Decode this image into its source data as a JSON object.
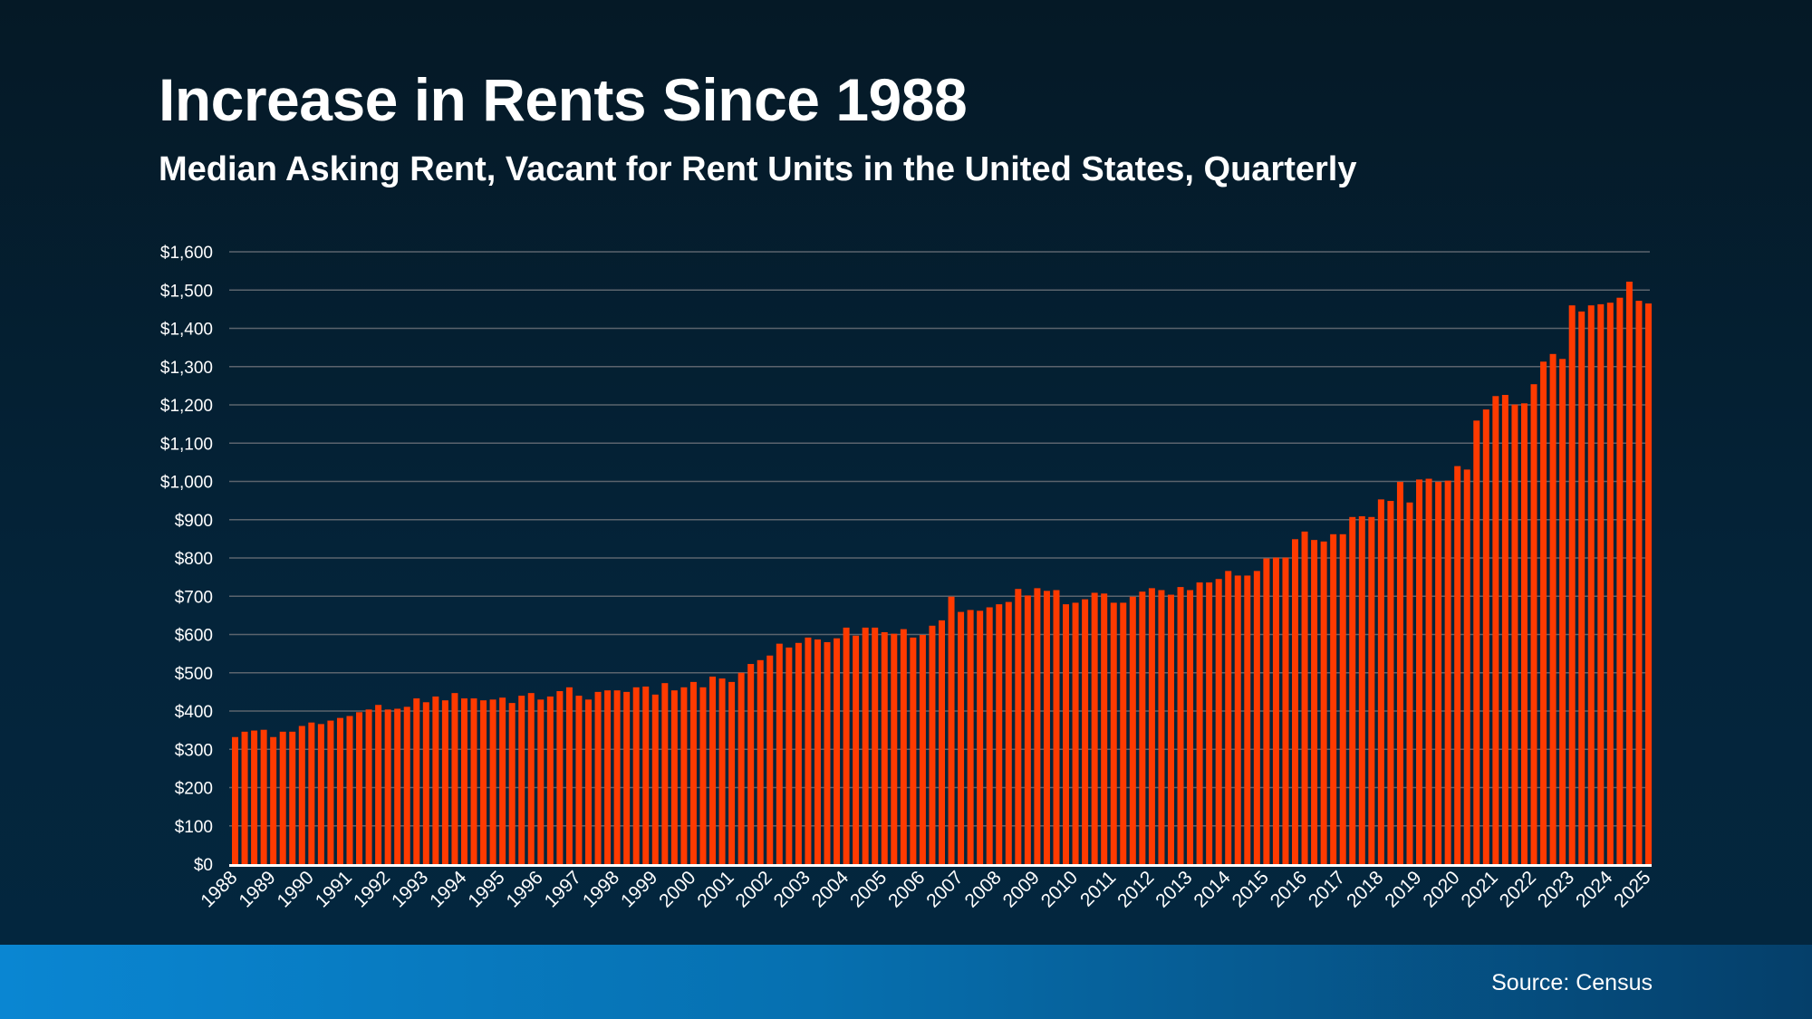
{
  "header": {
    "title": "Increase in Rents Since 1988",
    "subtitle": "Median Asking Rent, Vacant for Rent Units in the United States, Quarterly"
  },
  "footer": {
    "source": "Source: Census"
  },
  "colors": {
    "bar": "#ff3a00",
    "grid": "#5b646d",
    "axis": "#ffffff",
    "footer_left": "#0a86d2",
    "footer_right": "#053f6a"
  },
  "chart_data": {
    "type": "bar",
    "title": "Increase in Rents Since 1988",
    "subtitle": "Median Asking Rent, Vacant for Rent Units in the United States, Quarterly",
    "xlabel": "",
    "ylabel": "",
    "ylim": [
      0,
      1600
    ],
    "grid": true,
    "y_ticks": [
      0,
      100,
      200,
      300,
      400,
      500,
      600,
      700,
      800,
      900,
      1000,
      1100,
      1200,
      1300,
      1400,
      1500,
      1600
    ],
    "y_tick_labels": [
      "$0",
      "$100",
      "$200",
      "$300",
      "$400",
      "$500",
      "$600",
      "$700",
      "$800",
      "$900",
      "$1,000",
      "$1,100",
      "$1,200",
      "$1,300",
      "$1,400",
      "$1,500",
      "$1,600"
    ],
    "x_tick_labels": [
      "1988",
      "1989",
      "1990",
      "1991",
      "1992",
      "1993",
      "1994",
      "1995",
      "1996",
      "1997",
      "1998",
      "1999",
      "2000",
      "2001",
      "2002",
      "2003",
      "2004",
      "2005",
      "2006",
      "2007",
      "2008",
      "2009",
      "2010",
      "2011",
      "2012",
      "2013",
      "2014",
      "2015",
      "2016",
      "2017",
      "2018",
      "2019",
      "2020",
      "2021",
      "2022",
      "2023",
      "2024",
      "2025"
    ],
    "categories": [
      "1988 Q1",
      "1988 Q2",
      "1988 Q3",
      "1988 Q4",
      "1989 Q1",
      "1989 Q2",
      "1989 Q3",
      "1989 Q4",
      "1990 Q1",
      "1990 Q2",
      "1990 Q3",
      "1990 Q4",
      "1991 Q1",
      "1991 Q2",
      "1991 Q3",
      "1991 Q4",
      "1992 Q1",
      "1992 Q2",
      "1992 Q3",
      "1992 Q4",
      "1993 Q1",
      "1993 Q2",
      "1993 Q3",
      "1993 Q4",
      "1994 Q1",
      "1994 Q2",
      "1994 Q3",
      "1994 Q4",
      "1995 Q1",
      "1995 Q2",
      "1995 Q3",
      "1995 Q4",
      "1996 Q1",
      "1996 Q2",
      "1996 Q3",
      "1996 Q4",
      "1997 Q1",
      "1997 Q2",
      "1997 Q3",
      "1997 Q4",
      "1998 Q1",
      "1998 Q2",
      "1998 Q3",
      "1998 Q4",
      "1999 Q1",
      "1999 Q2",
      "1999 Q3",
      "1999 Q4",
      "2000 Q1",
      "2000 Q2",
      "2000 Q3",
      "2000 Q4",
      "2001 Q1",
      "2001 Q2",
      "2001 Q3",
      "2001 Q4",
      "2002 Q1",
      "2002 Q2",
      "2002 Q3",
      "2002 Q4",
      "2003 Q1",
      "2003 Q2",
      "2003 Q3",
      "2003 Q4",
      "2004 Q1",
      "2004 Q2",
      "2004 Q3",
      "2004 Q4",
      "2005 Q1",
      "2005 Q2",
      "2005 Q3",
      "2005 Q4",
      "2006 Q1",
      "2006 Q2",
      "2006 Q3",
      "2006 Q4",
      "2007 Q1",
      "2007 Q2",
      "2007 Q3",
      "2007 Q4",
      "2008 Q1",
      "2008 Q2",
      "2008 Q3",
      "2008 Q4",
      "2009 Q1",
      "2009 Q2",
      "2009 Q3",
      "2009 Q4",
      "2010 Q1",
      "2010 Q2",
      "2010 Q3",
      "2010 Q4",
      "2011 Q1",
      "2011 Q2",
      "2011 Q3",
      "2011 Q4",
      "2012 Q1",
      "2012 Q2",
      "2012 Q3",
      "2012 Q4",
      "2013 Q1",
      "2013 Q2",
      "2013 Q3",
      "2013 Q4",
      "2014 Q1",
      "2014 Q2",
      "2014 Q3",
      "2014 Q4",
      "2015 Q1",
      "2015 Q2",
      "2015 Q3",
      "2015 Q4",
      "2016 Q1",
      "2016 Q2",
      "2016 Q3",
      "2016 Q4",
      "2017 Q1",
      "2017 Q2",
      "2017 Q3",
      "2017 Q4",
      "2018 Q1",
      "2018 Q2",
      "2018 Q3",
      "2018 Q4",
      "2019 Q1",
      "2019 Q2",
      "2019 Q3",
      "2019 Q4",
      "2020 Q1",
      "2020 Q2",
      "2020 Q3",
      "2020 Q4",
      "2021 Q1",
      "2021 Q2",
      "2021 Q3",
      "2021 Q4",
      "2022 Q1",
      "2022 Q2",
      "2022 Q3",
      "2022 Q4",
      "2023 Q1",
      "2023 Q2",
      "2023 Q3",
      "2023 Q4",
      "2024 Q1",
      "2024 Q2",
      "2024 Q3",
      "2024 Q4",
      "2025 Q1"
    ],
    "values": [
      332,
      346,
      349,
      351,
      332,
      346,
      346,
      361,
      370,
      366,
      375,
      382,
      387,
      397,
      404,
      416,
      404,
      406,
      411,
      433,
      423,
      438,
      428,
      447,
      433,
      433,
      428,
      430,
      435,
      421,
      440,
      447,
      430,
      438,
      452,
      462,
      440,
      430,
      450,
      454,
      454,
      450,
      462,
      464,
      443,
      473,
      454,
      462,
      476,
      462,
      490,
      485,
      476,
      500,
      523,
      533,
      545,
      576,
      566,
      578,
      592,
      587,
      580,
      590,
      618,
      597,
      618,
      618,
      606,
      602,
      614,
      592,
      599,
      623,
      637,
      699,
      659,
      664,
      662,
      671,
      679,
      685,
      719,
      702,
      721,
      714,
      716,
      679,
      683,
      692,
      709,
      707,
      683,
      683,
      699,
      712,
      721,
      716,
      704,
      724,
      716,
      736,
      736,
      745,
      766,
      754,
      754,
      766,
      799,
      801,
      801,
      849,
      869,
      847,
      843,
      862,
      862,
      907,
      909,
      907,
      953,
      949,
      999,
      945,
      1005,
      1007,
      999,
      1002,
      1040,
      1031,
      1159,
      1188,
      1223,
      1226,
      1201,
      1204,
      1254,
      1313,
      1333,
      1320,
      1460,
      1444,
      1460,
      1463,
      1467,
      1480,
      1522,
      1472,
      1465
    ]
  }
}
